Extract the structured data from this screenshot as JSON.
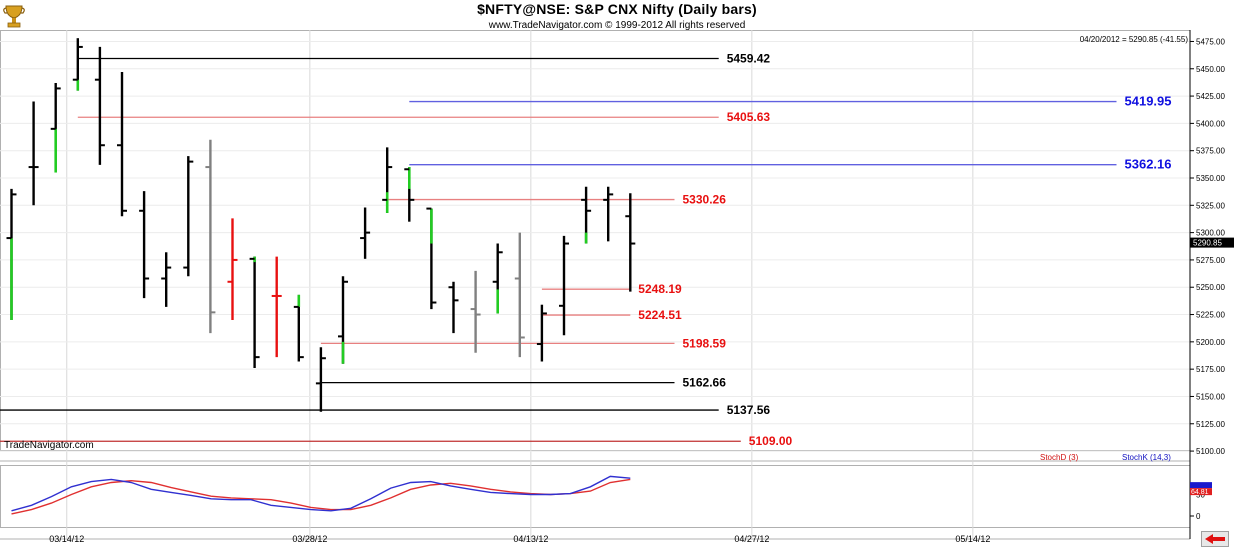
{
  "header": {
    "title": "$NFTY@NSE:  S&P CNX Nifty  (Daily bars)",
    "subtitle": "www.TradeNavigator.com © 1999-2012 All rights reserved",
    "info": "04/20/2012 = 5290.85 (-41.55)",
    "brand": "TradeNavigator.com"
  },
  "indicators": {
    "stoch_d_label": "StochD (3)",
    "stoch_k_label": "StochK (14,3)",
    "stoch_d_color": "#e03030",
    "stoch_k_color": "#3030d0"
  },
  "colors": {
    "up_bar": "#22cc22",
    "down_bar": "#e81010",
    "neutral_bar": "#808080",
    "normal_bar": "#000000",
    "support_red": "#e88080",
    "projection_blue": "#6060e0",
    "reference_black": "#000000"
  },
  "chart_data": {
    "type": "bar",
    "ohlc_style": "OHLC daily bars",
    "ylim": [
      5090,
      5480
    ],
    "y_ticks": [
      5100,
      5125,
      5150,
      5175,
      5200,
      5225,
      5250,
      5275,
      5300,
      5325,
      5350,
      5375,
      5400,
      5425,
      5450,
      5475
    ],
    "x_tick_labels": [
      {
        "slot": 2.5,
        "label": "03/14/12"
      },
      {
        "slot": 13.5,
        "label": "03/28/12"
      },
      {
        "slot": 23.5,
        "label": "04/13/12"
      },
      {
        "slot": 33.5,
        "label": "04/27/12"
      },
      {
        "slot": 43.5,
        "label": "05/14/12"
      }
    ],
    "last_price": 5290.85,
    "bars": [
      {
        "o": 5295,
        "h": 5340,
        "l": 5220,
        "c": 5335,
        "color": "normal",
        "accent": [
          5220,
          5295
        ]
      },
      {
        "o": 5360,
        "h": 5420,
        "l": 5325,
        "c": 5360,
        "color": "normal"
      },
      {
        "o": 5395,
        "h": 5437,
        "l": 5355,
        "c": 5432,
        "color": "normal",
        "accent": [
          5355,
          5395
        ]
      },
      {
        "o": 5440,
        "h": 5478,
        "l": 5430,
        "c": 5470,
        "color": "normal",
        "accent": [
          5430,
          5440
        ]
      },
      {
        "o": 5440,
        "h": 5470,
        "l": 5362,
        "c": 5380,
        "color": "normal"
      },
      {
        "o": 5380,
        "h": 5447,
        "l": 5315,
        "c": 5320,
        "color": "normal"
      },
      {
        "o": 5320,
        "h": 5338,
        "l": 5240,
        "c": 5258,
        "color": "normal"
      },
      {
        "o": 5258,
        "h": 5282,
        "l": 5232,
        "c": 5268,
        "color": "normal"
      },
      {
        "o": 5268,
        "h": 5370,
        "l": 5260,
        "c": 5365,
        "color": "normal"
      },
      {
        "o": 5360,
        "h": 5385,
        "l": 5208,
        "c": 5227,
        "color": "neutral"
      },
      {
        "o": 5255,
        "h": 5313,
        "l": 5220,
        "c": 5275,
        "color": "down"
      },
      {
        "o": 5276,
        "h": 5278,
        "l": 5176,
        "c": 5186,
        "color": "normal",
        "accent": [
          5273,
          5278
        ]
      },
      {
        "o": 5242,
        "h": 5278,
        "l": 5186,
        "c": 5242,
        "color": "down"
      },
      {
        "o": 5232,
        "h": 5243,
        "l": 5182,
        "c": 5186,
        "color": "normal",
        "accent": [
          5232,
          5243
        ]
      },
      {
        "o": 5162,
        "h": 5195,
        "l": 5136,
        "c": 5185,
        "color": "normal"
      },
      {
        "o": 5205,
        "h": 5260,
        "l": 5180,
        "c": 5255,
        "color": "normal",
        "accent": [
          5180,
          5200
        ]
      },
      {
        "o": 5295,
        "h": 5323,
        "l": 5276,
        "c": 5300,
        "color": "normal"
      },
      {
        "o": 5330,
        "h": 5378,
        "l": 5318,
        "c": 5360,
        "color": "normal",
        "accent": [
          5318,
          5337
        ]
      },
      {
        "o": 5358,
        "h": 5360,
        "l": 5310,
        "c": 5330,
        "color": "normal",
        "accent": [
          5340,
          5360
        ]
      },
      {
        "o": 5322,
        "h": 5322,
        "l": 5230,
        "c": 5236,
        "color": "normal",
        "accent": [
          5290,
          5322
        ]
      },
      {
        "o": 5250,
        "h": 5255,
        "l": 5208,
        "c": 5238,
        "color": "normal"
      },
      {
        "o": 5230,
        "h": 5265,
        "l": 5190,
        "c": 5225,
        "color": "neutral"
      },
      {
        "o": 5255,
        "h": 5290,
        "l": 5226,
        "c": 5282,
        "color": "normal",
        "accent": [
          5226,
          5248
        ]
      },
      {
        "o": 5258,
        "h": 5300,
        "l": 5186,
        "c": 5204,
        "color": "neutral"
      },
      {
        "o": 5198,
        "h": 5234,
        "l": 5182,
        "c": 5226,
        "color": "normal"
      },
      {
        "o": 5233,
        "h": 5297,
        "l": 5206,
        "c": 5290,
        "color": "normal"
      },
      {
        "o": 5330,
        "h": 5342,
        "l": 5290,
        "c": 5320,
        "color": "normal",
        "accent": [
          5290,
          5300
        ]
      },
      {
        "o": 5330,
        "h": 5342,
        "l": 5292,
        "c": 5335,
        "color": "normal"
      },
      {
        "o": 5315,
        "h": 5336,
        "l": 5246,
        "c": 5290,
        "color": "normal"
      }
    ],
    "levels": [
      {
        "value": 5459.42,
        "label": "5459.42",
        "line_color": "#000000",
        "text_color": "#000000",
        "x_from": 3,
        "x_to": 32
      },
      {
        "value": 5405.63,
        "label": "5405.63",
        "line_color": "#e88080",
        "text_color": "#e81010",
        "x_from": 3,
        "x_to": 32
      },
      {
        "value": 5419.95,
        "label": "5419.95",
        "line_color": "#6060e0",
        "text_color": "#1010e0",
        "x_from": 18,
        "x_to": 50
      },
      {
        "value": 5362.16,
        "label": "5362.16",
        "line_color": "#6060e0",
        "text_color": "#1010e0",
        "x_from": 18,
        "x_to": 50
      },
      {
        "value": 5330.26,
        "label": "5330.26",
        "line_color": "#e88080",
        "text_color": "#e81010",
        "x_from": 17,
        "x_to": 30
      },
      {
        "value": 5248.19,
        "label": "5248.19",
        "line_color": "#e88080",
        "text_color": "#e81010",
        "x_from": 24,
        "x_to": 28
      },
      {
        "value": 5224.51,
        "label": "5224.51",
        "line_color": "#e88080",
        "text_color": "#e81010",
        "x_from": 24,
        "x_to": 28
      },
      {
        "value": 5198.59,
        "label": "5198.59",
        "line_color": "#e88080",
        "text_color": "#e81010",
        "x_from": 14,
        "x_to": 30
      },
      {
        "value": 5162.66,
        "label": "5162.66",
        "line_color": "#000000",
        "text_color": "#000000",
        "x_from": 14,
        "x_to": 30
      },
      {
        "value": 5137.56,
        "label": "5137.56",
        "line_color": "#000000",
        "text_color": "#000000",
        "x_from": -1,
        "x_to": 32
      },
      {
        "value": 5109.0,
        "label": "5109.00",
        "line_color": "#c03030",
        "text_color": "#e81010",
        "x_from": -1,
        "x_to": 33
      }
    ],
    "stochastic": {
      "ylim": [
        0,
        100
      ],
      "y_ticks": [
        0,
        50
      ],
      "last_value": "64.81",
      "stoch_k": [
        12,
        25,
        45,
        68,
        80,
        85,
        78,
        62,
        55,
        48,
        40,
        38,
        38,
        25,
        20,
        15,
        12,
        18,
        40,
        65,
        78,
        80,
        70,
        62,
        55,
        52,
        50,
        50,
        52,
        68,
        92,
        88
      ],
      "stoch_d": [
        5,
        15,
        30,
        50,
        68,
        78,
        82,
        78,
        66,
        56,
        46,
        42,
        40,
        38,
        30,
        20,
        15,
        15,
        25,
        42,
        62,
        72,
        76,
        70,
        62,
        56,
        52,
        50,
        52,
        58,
        78,
        85
      ]
    }
  }
}
